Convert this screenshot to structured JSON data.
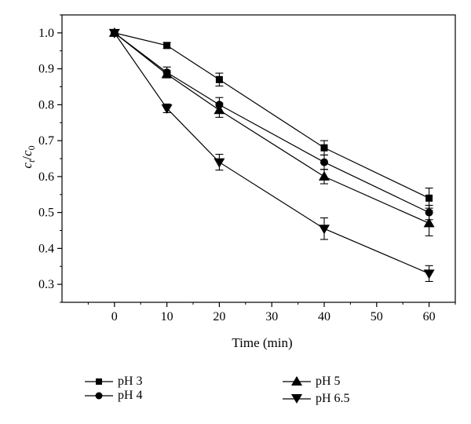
{
  "chart_data": {
    "type": "line",
    "xlabel": "Time (min)",
    "ylabel_main": "c",
    "ylabel_main_sub": "t",
    "ylabel_sep": "/",
    "ylabel_denom": "c",
    "ylabel_denom_sub": "0",
    "xlim": [
      -10,
      65
    ],
    "ylim": [
      0.25,
      1.05
    ],
    "xticks": [
      0,
      10,
      20,
      30,
      40,
      50,
      60
    ],
    "xtick_labels": [
      "0",
      "10",
      "20",
      "30",
      "40",
      "50",
      "60"
    ],
    "yticks": [
      0.3,
      0.4,
      0.5,
      0.6,
      0.7,
      0.8,
      0.9,
      1.0
    ],
    "ytick_labels": [
      "0.3",
      "0.4",
      "0.5",
      "0.6",
      "0.7",
      "0.8",
      "0.9",
      "1.0"
    ],
    "grid": false,
    "legend_position": "below",
    "x": [
      0,
      10,
      20,
      40,
      60
    ],
    "series": [
      {
        "name": "pH 3",
        "marker": "square",
        "values": [
          1.0,
          0.965,
          0.87,
          0.68,
          0.54
        ],
        "errors": [
          0.0,
          0.008,
          0.018,
          0.02,
          0.028
        ]
      },
      {
        "name": "pH 4",
        "marker": "circle",
        "values": [
          1.0,
          0.89,
          0.8,
          0.64,
          0.5
        ],
        "errors": [
          0.0,
          0.015,
          0.02,
          0.02,
          0.02
        ]
      },
      {
        "name": "pH 5",
        "marker": "triangle-up",
        "values": [
          1.0,
          0.885,
          0.785,
          0.6,
          0.47
        ],
        "errors": [
          0.0,
          0.01,
          0.02,
          0.02,
          0.035
        ]
      },
      {
        "name": "pH 6.5",
        "marker": "triangle-down",
        "values": [
          1.0,
          0.79,
          0.64,
          0.455,
          0.33
        ],
        "errors": [
          0.0,
          0.012,
          0.022,
          0.03,
          0.022
        ]
      }
    ]
  }
}
